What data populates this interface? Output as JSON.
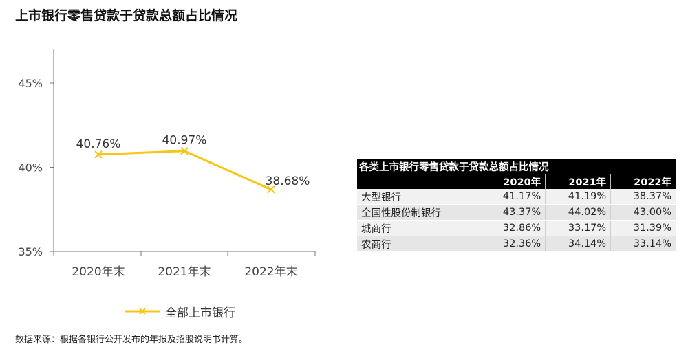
{
  "title": "上市银行零售贷款于贷款总额占比情况",
  "chart_data": {
    "type": "line",
    "categories": [
      "2020年末",
      "2021年末",
      "2022年末"
    ],
    "series": [
      {
        "name": "全部上市银行",
        "values": [
          40.76,
          40.97,
          38.68
        ],
        "labels": [
          "40.76%",
          "40.97%",
          "38.68%"
        ]
      }
    ],
    "ylim": [
      35,
      47
    ],
    "yticks": [
      35,
      40,
      45
    ],
    "ytick_labels": [
      "35%",
      "40%",
      "45%"
    ],
    "line_color": "#F5C518",
    "grid": false,
    "legend_position": "bottom"
  },
  "table": {
    "caption": "各类上市银行零售贷款于贷款总额占比情况",
    "years": [
      "2020年",
      "2021年",
      "2022年"
    ],
    "rows": [
      {
        "name": "大型银行",
        "values": [
          "41.17%",
          "41.19%",
          "38.37%"
        ]
      },
      {
        "name": "全国性股份制银行",
        "values": [
          "43.37%",
          "44.02%",
          "43.00%"
        ]
      },
      {
        "name": "城商行",
        "values": [
          "32.86%",
          "33.17%",
          "31.39%"
        ]
      },
      {
        "name": "农商行",
        "values": [
          "32.36%",
          "34.14%",
          "33.14%"
        ]
      }
    ]
  },
  "source": "数据来源：根据各银行公开发布的年报及招股说明书计算。"
}
